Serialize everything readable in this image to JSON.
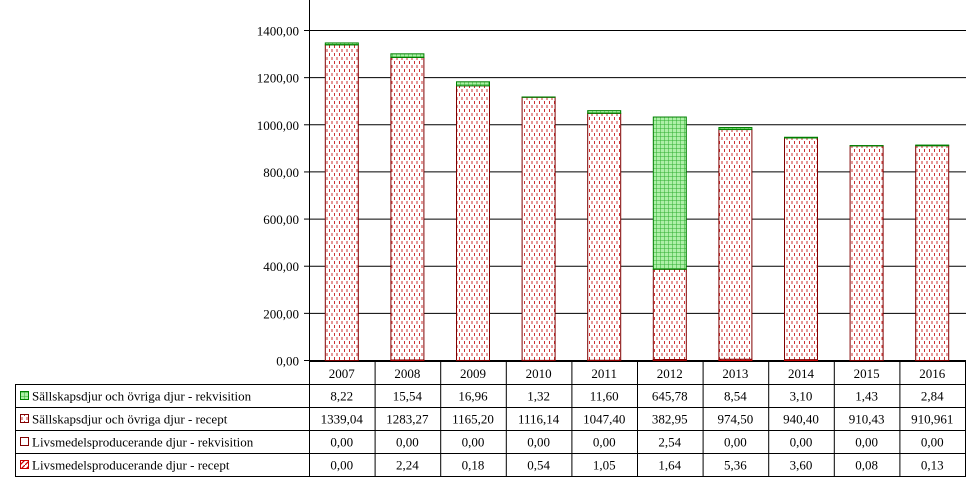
{
  "chart_data": {
    "type": "bar",
    "stacked": true,
    "categories": [
      "2007",
      "2008",
      "2009",
      "2010",
      "2011",
      "2012",
      "2013",
      "2014",
      "2015",
      "2016"
    ],
    "y_ticks": [
      "0,00",
      "200,00",
      "400,00",
      "600,00",
      "800,00",
      "1000,00",
      "1200,00",
      "1400,00"
    ],
    "ylim": [
      0,
      1400
    ],
    "grid": true,
    "legend": "data-table-left",
    "series": [
      {
        "name": "Sällskapsdjur och övriga djur - rekvisition",
        "fill": "#44cc44",
        "stroke": "#008000",
        "pattern": "green-grid",
        "values": [
          8.22,
          15.54,
          16.96,
          1.32,
          11.6,
          645.78,
          8.54,
          3.1,
          1.43,
          2.84
        ],
        "labels": [
          "8,22",
          "15,54",
          "16,96",
          "1,32",
          "11,60",
          "645,78",
          "8,54",
          "3,10",
          "1,43",
          "2,84"
        ]
      },
      {
        "name": "Sällskapsdjur och övriga djur - recept",
        "fill": "#ffffff",
        "stroke": "#800000",
        "pattern": "red-dots",
        "values": [
          1339.04,
          1283.27,
          1165.2,
          1116.14,
          1047.4,
          382.95,
          974.5,
          940.4,
          910.43,
          910.961
        ],
        "labels": [
          "1339,04",
          "1283,27",
          "1165,20",
          "1116,14",
          "1047,40",
          "382,95",
          "974,50",
          "940,40",
          "910,43",
          "910,961"
        ]
      },
      {
        "name": "Livsmedelsproducerande djur - rekvisition",
        "fill": "#ffffff",
        "stroke": "#800000",
        "pattern": "plain",
        "values": [
          0.0,
          0.0,
          0.0,
          0.0,
          0.0,
          2.54,
          0.0,
          0.0,
          0.0,
          0.0
        ],
        "labels": [
          "0,00",
          "0,00",
          "0,00",
          "0,00",
          "0,00",
          "2,54",
          "0,00",
          "0,00",
          "0,00",
          "0,00"
        ]
      },
      {
        "name": "Livsmedelsproducerande djur - recept",
        "fill": "#ffffff",
        "stroke": "#cc0000",
        "pattern": "red-hatch",
        "values": [
          0.0,
          2.24,
          0.18,
          0.54,
          1.05,
          1.64,
          5.36,
          3.6,
          0.08,
          0.13
        ],
        "labels": [
          "0,00",
          "2,24",
          "0,18",
          "0,54",
          "1,05",
          "1,64",
          "5,36",
          "3,60",
          "0,08",
          "0,13"
        ]
      }
    ],
    "stack_order_bottom_to_top": [
      3,
      2,
      1,
      0
    ]
  }
}
